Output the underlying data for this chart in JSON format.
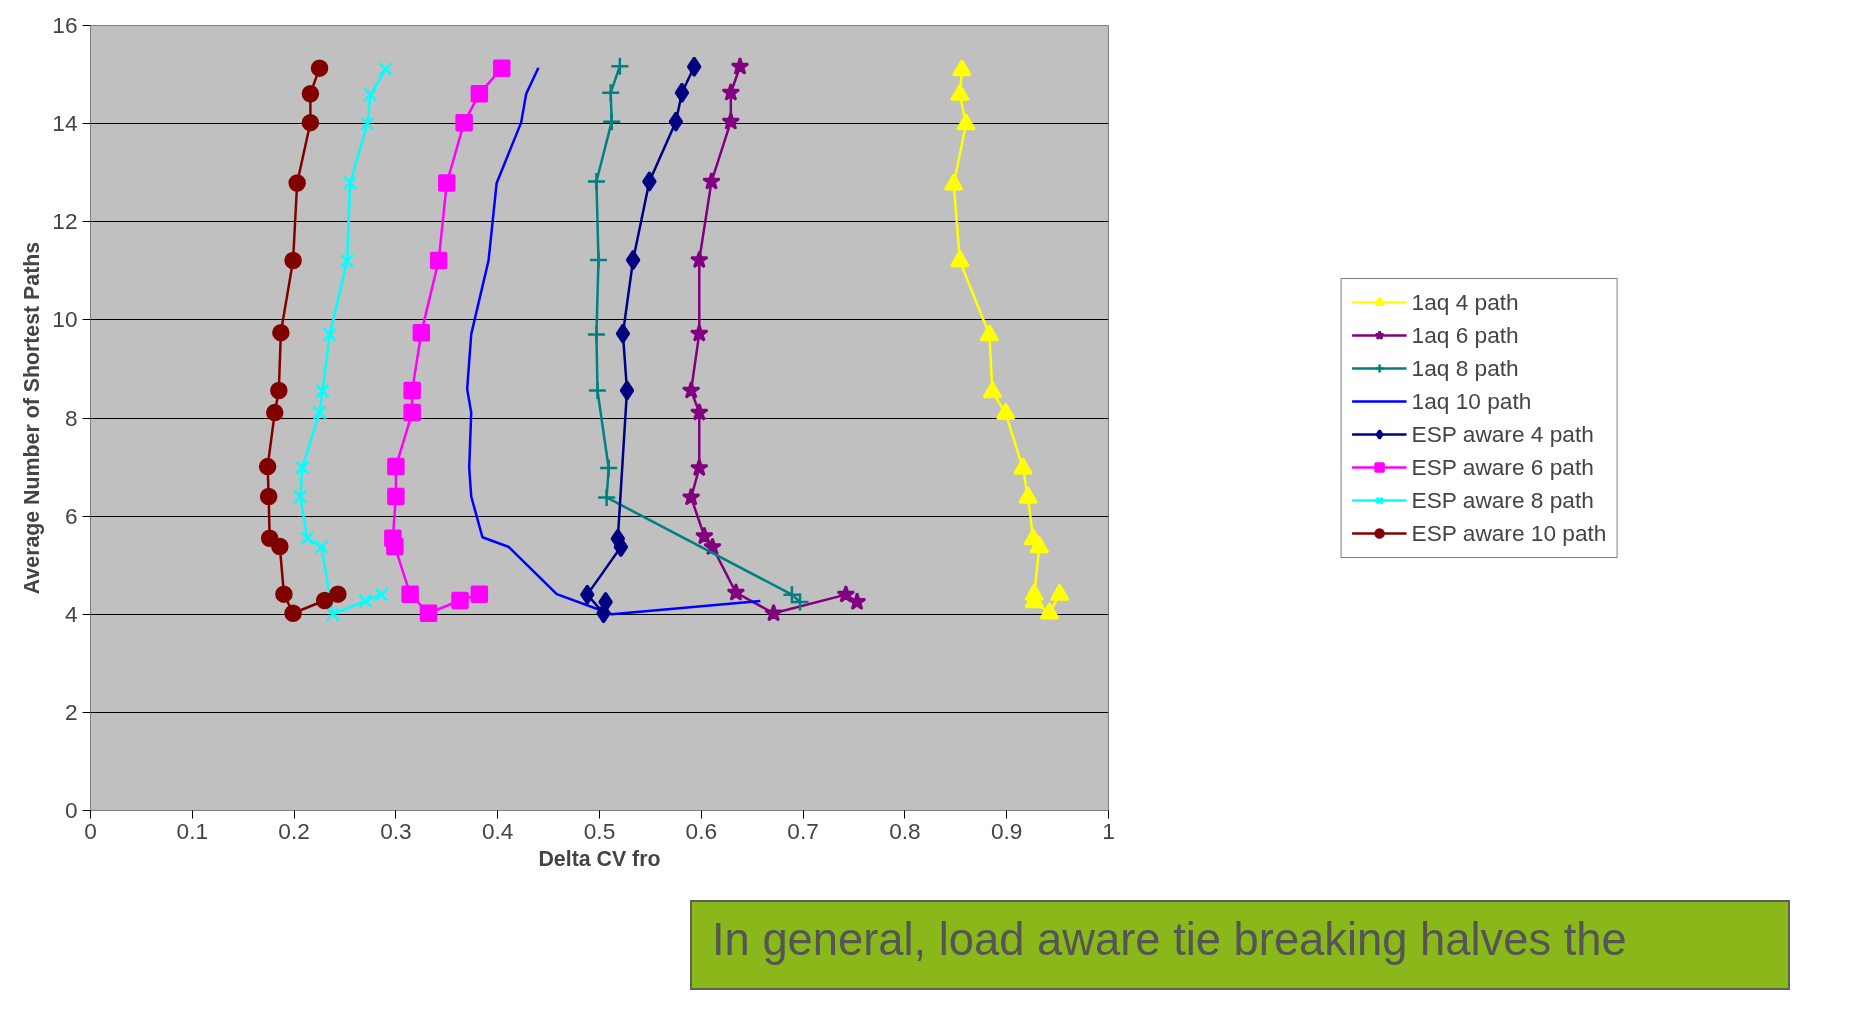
{
  "chart_data": {
    "type": "line",
    "xlabel": "Delta CV fro",
    "ylabel": "Average Number of Shortest Paths",
    "xlim": [
      0,
      1
    ],
    "ylim": [
      0,
      16
    ],
    "xticks": [
      0,
      0.1,
      0.2,
      0.3,
      0.4,
      0.5,
      0.6,
      0.7,
      0.8,
      0.9,
      1
    ],
    "yticks": [
      0,
      2,
      4,
      6,
      8,
      10,
      12,
      14,
      16
    ],
    "grid": "y",
    "legend": "right",
    "line_style": "solid",
    "annotations": [
      "In general, load aware tie breaking halves the"
    ],
    "series": [
      {
        "name": "1aq 4 path",
        "color": "#ffff00",
        "marker": "triangle",
        "x": [
          0.856,
          0.854,
          0.86,
          0.848,
          0.854,
          0.883,
          0.886,
          0.899,
          0.916,
          0.921,
          0.926,
          0.932,
          0.927,
          0.927,
          0.942,
          0.952
        ],
        "values": [
          15.09,
          14.59,
          13.99,
          12.76,
          11.2,
          9.69,
          8.53,
          8.09,
          6.97,
          6.38,
          5.53,
          5.37,
          4.4,
          4.25,
          4.02,
          4.4
        ]
      },
      {
        "name": "1aq 6 path",
        "color": "#800080",
        "marker": "star",
        "x": [
          0.638,
          0.629,
          0.629,
          0.61,
          0.598,
          0.598,
          0.59,
          0.598,
          0.598,
          0.59,
          0.603,
          0.611,
          0.634,
          0.671,
          0.742,
          0.753
        ],
        "values": [
          15.16,
          14.63,
          14.04,
          12.82,
          11.22,
          9.72,
          8.56,
          8.11,
          6.98,
          6.38,
          5.59,
          5.37,
          4.44,
          4.02,
          4.4,
          4.25
        ]
      },
      {
        "name": "1aq 8 path",
        "color": "#008080",
        "marker": "cross",
        "x": [
          0.52,
          0.511,
          0.512,
          0.497,
          0.499,
          0.497,
          0.498,
          0.509,
          0.507,
          0.689,
          0.697
        ],
        "values": [
          15.17,
          14.63,
          14.04,
          12.82,
          11.22,
          9.7,
          8.56,
          6.98,
          6.38,
          4.4,
          4.25
        ]
      },
      {
        "name": "1aq 10 path",
        "color": "#0000ff",
        "marker": "none",
        "x": [
          0.44,
          0.428,
          0.423,
          0.399,
          0.391,
          0.374,
          0.37,
          0.374,
          0.372,
          0.374,
          0.385,
          0.411,
          0.458,
          0.512,
          0.658
        ],
        "values": [
          15.14,
          14.61,
          14.02,
          12.79,
          11.21,
          9.71,
          8.59,
          8.11,
          6.99,
          6.4,
          5.57,
          5.37,
          4.41,
          4.0,
          4.27
        ]
      },
      {
        "name": "ESP aware 4 path",
        "color": "#000080",
        "marker": "diamond",
        "x": [
          0.593,
          0.581,
          0.575,
          0.549,
          0.533,
          0.523,
          0.527,
          0.518,
          0.521,
          0.488,
          0.504,
          0.506
        ],
        "values": [
          15.16,
          14.63,
          14.04,
          12.82,
          11.22,
          9.72,
          8.56,
          5.54,
          5.37,
          4.4,
          4.02,
          4.25
        ]
      },
      {
        "name": "ESP aware 6 path",
        "color": "#ff00ff",
        "marker": "square",
        "x": [
          0.404,
          0.382,
          0.367,
          0.35,
          0.342,
          0.325,
          0.316,
          0.316,
          0.3,
          0.3,
          0.297,
          0.299,
          0.314,
          0.332,
          0.363,
          0.382
        ],
        "values": [
          15.13,
          14.61,
          14.02,
          12.79,
          11.21,
          9.74,
          8.56,
          8.11,
          7.01,
          6.4,
          5.55,
          5.38,
          4.41,
          4.02,
          4.28,
          4.41
        ]
      },
      {
        "name": "ESP aware 8 path",
        "color": "#00ffff",
        "marker": "x",
        "x": [
          0.29,
          0.275,
          0.272,
          0.255,
          0.252,
          0.235,
          0.228,
          0.225,
          0.208,
          0.206,
          0.213,
          0.227,
          0.238,
          0.27,
          0.286
        ],
        "values": [
          15.11,
          14.59,
          14.0,
          12.79,
          11.2,
          9.7,
          8.55,
          8.11,
          6.99,
          6.4,
          5.55,
          5.37,
          4.0,
          4.27,
          4.4
        ]
      },
      {
        "name": "ESP aware 10 path",
        "color": "#800000",
        "marker": "circle",
        "x": [
          0.225,
          0.216,
          0.216,
          0.203,
          0.199,
          0.187,
          0.185,
          0.181,
          0.174,
          0.175,
          0.176,
          0.186,
          0.19,
          0.199,
          0.23,
          0.243
        ],
        "values": [
          15.13,
          14.61,
          14.02,
          12.79,
          11.21,
          9.74,
          8.56,
          8.11,
          7.01,
          6.4,
          5.55,
          5.38,
          4.41,
          4.02,
          4.28,
          4.41
        ]
      }
    ]
  }
}
